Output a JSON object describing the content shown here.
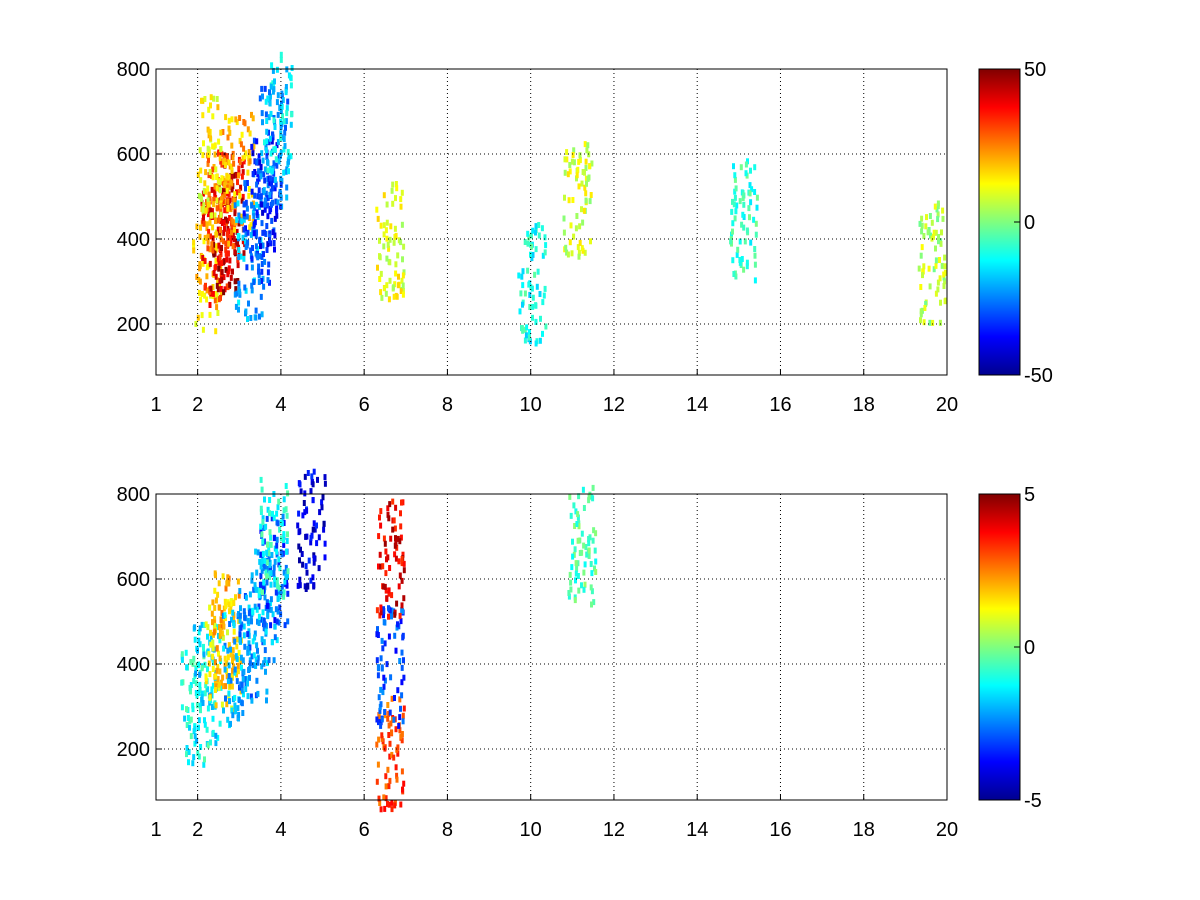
{
  "chart_data": [
    {
      "type": "heatmap",
      "title": "",
      "xlabel": "",
      "ylabel": "",
      "xlim": [
        1,
        20
      ],
      "ylim": [
        80,
        800
      ],
      "xticks": [
        1,
        2,
        4,
        6,
        8,
        10,
        12,
        14,
        16,
        18,
        20
      ],
      "xtick_labels": [
        "1",
        "2",
        "4",
        "6",
        "8",
        "10",
        "12",
        "14",
        "16",
        "18",
        "20"
      ],
      "yticks": [
        200,
        400,
        600,
        800
      ],
      "ytick_labels": [
        "200",
        "400",
        "600",
        "800"
      ],
      "grid": true,
      "grid_style": "dotted",
      "colormap": "jet",
      "clim": [
        -50,
        50
      ],
      "colorbar_ticks": [
        -50,
        0,
        50
      ],
      "colorbar_labels": [
        "-50",
        "0",
        "50"
      ],
      "values": [
        {
          "x": 2.2,
          "y": 330,
          "v": 15
        },
        {
          "x": 2.4,
          "y": 380,
          "v": 35
        },
        {
          "x": 2.6,
          "y": 420,
          "v": 45
        },
        {
          "x": 2.8,
          "y": 470,
          "v": 40
        },
        {
          "x": 2.5,
          "y": 520,
          "v": 25
        },
        {
          "x": 3.0,
          "y": 560,
          "v": 20
        },
        {
          "x": 2.3,
          "y": 600,
          "v": 12
        },
        {
          "x": 3.2,
          "y": 350,
          "v": -20
        },
        {
          "x": 3.4,
          "y": 430,
          "v": -30
        },
        {
          "x": 3.6,
          "y": 520,
          "v": -35
        },
        {
          "x": 3.8,
          "y": 620,
          "v": -25
        },
        {
          "x": 3.9,
          "y": 700,
          "v": -15
        },
        {
          "x": 6.6,
          "y": 400,
          "v": 10
        },
        {
          "x": 10.0,
          "y": 300,
          "v": -10
        },
        {
          "x": 11.1,
          "y": 500,
          "v": 8
        },
        {
          "x": 15.1,
          "y": 450,
          "v": -8
        },
        {
          "x": 19.6,
          "y": 350,
          "v": 5
        }
      ]
    },
    {
      "type": "heatmap",
      "title": "",
      "xlabel": "",
      "ylabel": "",
      "xlim": [
        1,
        20
      ],
      "ylim": [
        80,
        800
      ],
      "xticks": [
        1,
        2,
        4,
        6,
        8,
        10,
        12,
        14,
        16,
        18,
        20
      ],
      "xtick_labels": [
        "1",
        "2",
        "4",
        "6",
        "8",
        "10",
        "12",
        "14",
        "16",
        "18",
        "20"
      ],
      "yticks": [
        200,
        400,
        600,
        800
      ],
      "ytick_labels": [
        "200",
        "400",
        "600",
        "800"
      ],
      "grid": true,
      "grid_style": "dotted",
      "colormap": "jet",
      "clim": [
        -5,
        5
      ],
      "colorbar_ticks": [
        -5,
        0,
        5
      ],
      "colorbar_labels": [
        "-5",
        "0",
        "5"
      ],
      "values": [
        {
          "x": 1.9,
          "y": 310,
          "v": -1
        },
        {
          "x": 2.2,
          "y": 360,
          "v": -1.5
        },
        {
          "x": 2.5,
          "y": 420,
          "v": 1.5
        },
        {
          "x": 2.7,
          "y": 480,
          "v": 2
        },
        {
          "x": 2.9,
          "y": 400,
          "v": -2
        },
        {
          "x": 3.3,
          "y": 450,
          "v": -2.5
        },
        {
          "x": 3.6,
          "y": 540,
          "v": -2
        },
        {
          "x": 3.8,
          "y": 620,
          "v": -3
        },
        {
          "x": 3.8,
          "y": 700,
          "v": -1
        },
        {
          "x": 4.7,
          "y": 720,
          "v": -4
        },
        {
          "x": 6.6,
          "y": 200,
          "v": 3
        },
        {
          "x": 6.6,
          "y": 400,
          "v": -3
        },
        {
          "x": 6.6,
          "y": 650,
          "v": 4
        },
        {
          "x": 11.2,
          "y": 685,
          "v": -0.5
        }
      ]
    }
  ]
}
